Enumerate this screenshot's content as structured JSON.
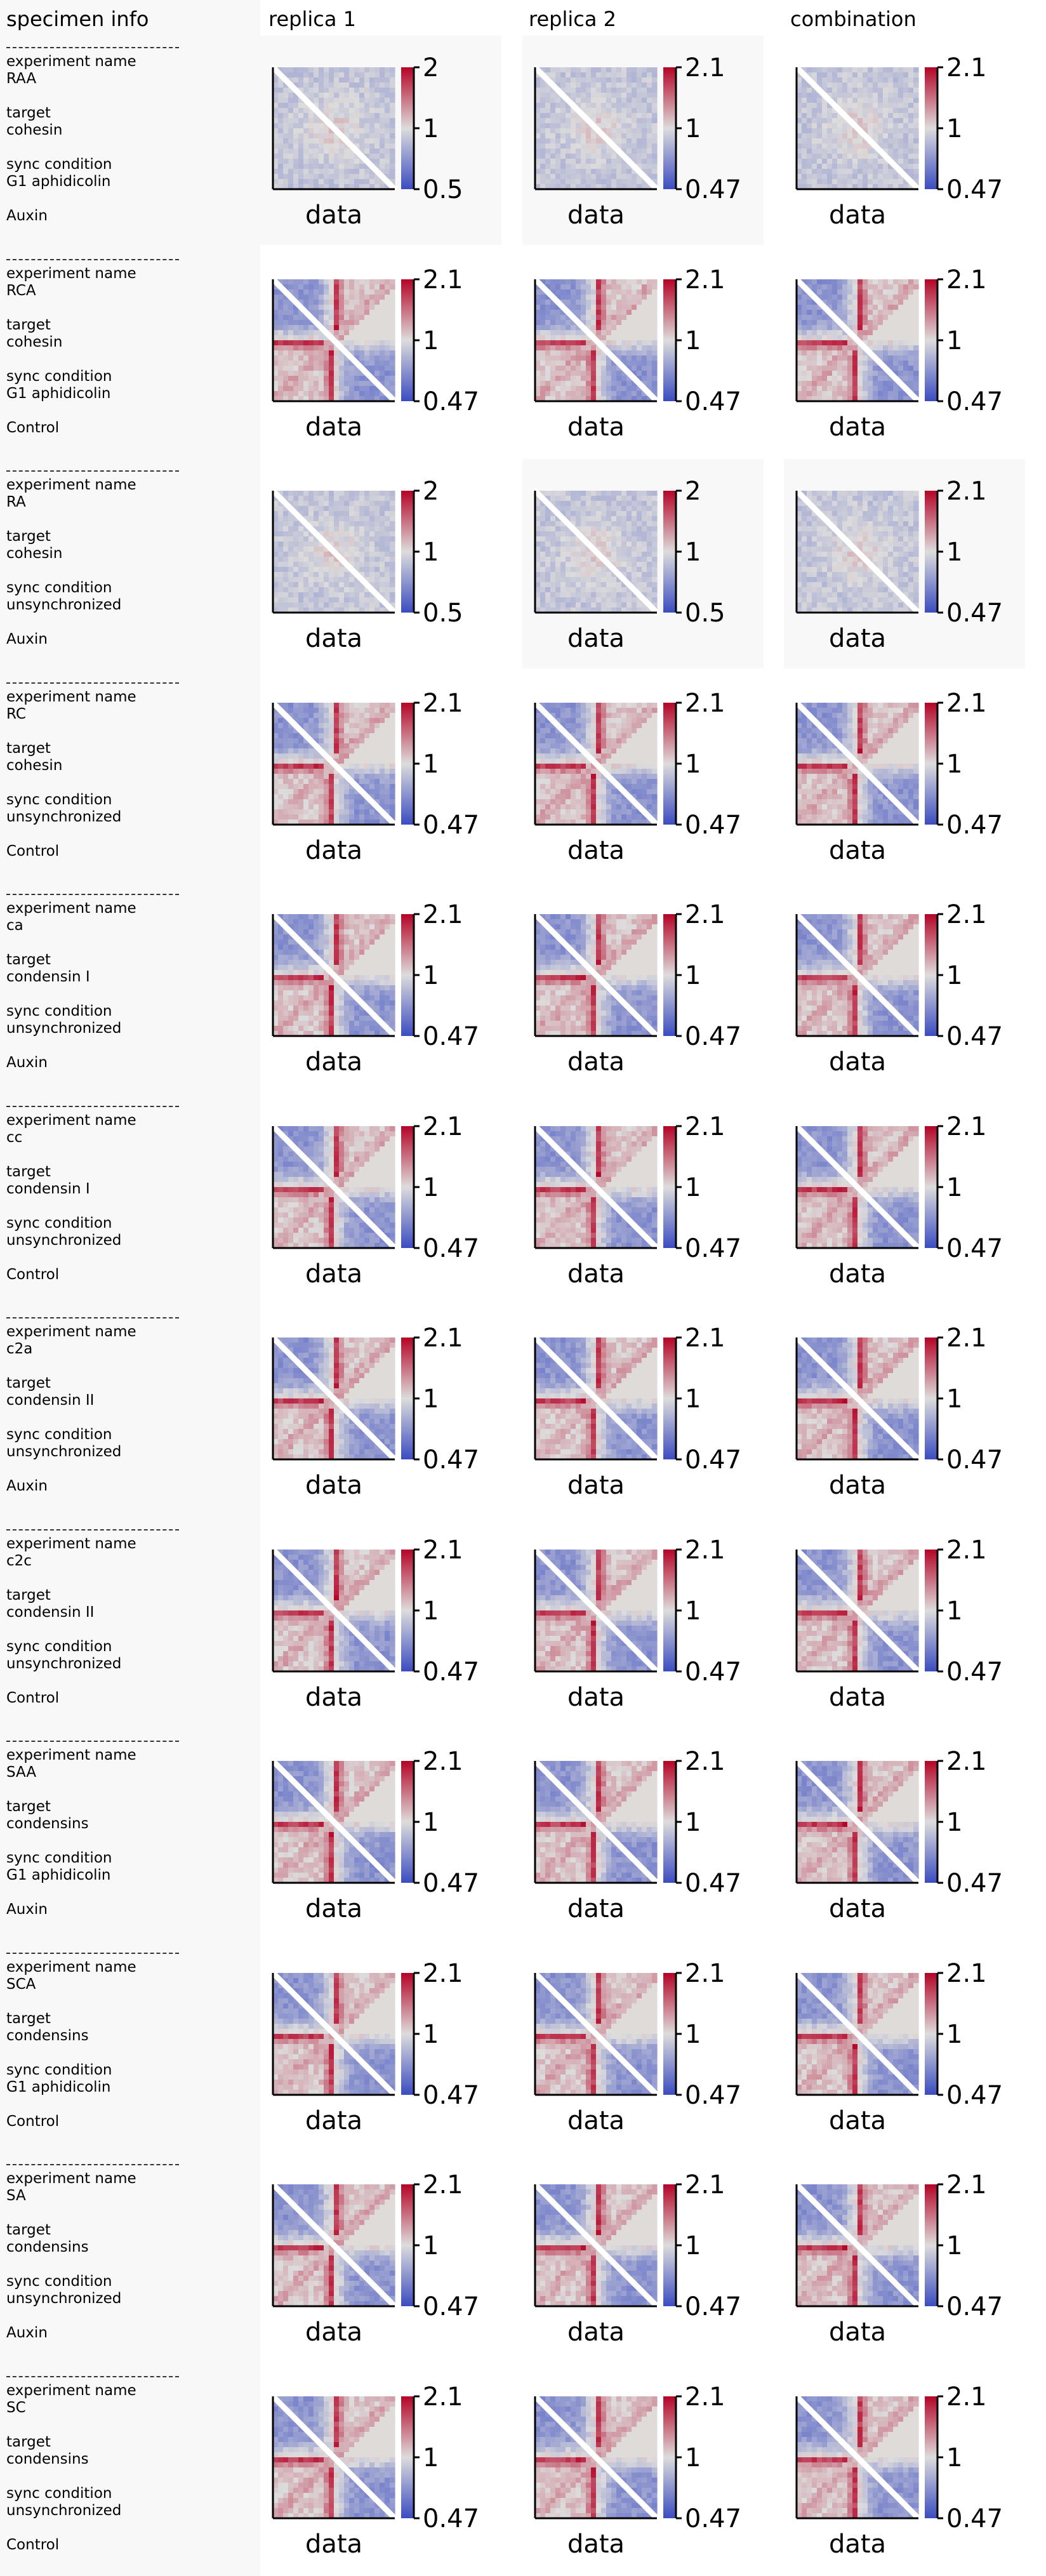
{
  "headers": {
    "info": "specimen info",
    "rep1": "replica 1",
    "rep2": "replica 2",
    "combo": "combination"
  },
  "labels": {
    "experiment_name": "experiment name",
    "target": "target",
    "sync_condition": "sync condition",
    "xlabel": "data"
  },
  "colors": {
    "low": "#3b4cc0",
    "mid": "#dddcdc",
    "high": "#b40426",
    "diagonal_mask": "#ffffff",
    "background": "#ffffff",
    "sidebar_background": "#f8f8f8"
  },
  "specimens": [
    {
      "name": "RAA",
      "target": "cohesin",
      "sync": "G1 aphidicolin",
      "treatment": "Auxin",
      "pattern": "weak",
      "ticks": [
        [
          "2",
          "1",
          "0.5"
        ],
        [
          "2.1",
          "1",
          "0.47"
        ],
        [
          "2.1",
          "1",
          "0.47"
        ]
      ],
      "shaded": [
        true,
        true,
        false
      ]
    },
    {
      "name": "RCA",
      "target": "cohesin",
      "sync": "G1 aphidicolin",
      "treatment": "Control",
      "pattern": "strong",
      "ticks": [
        [
          "2.1",
          "1",
          "0.47"
        ],
        [
          "2.1",
          "1",
          "0.47"
        ],
        [
          "2.1",
          "1",
          "0.47"
        ]
      ],
      "shaded": [
        false,
        false,
        false
      ]
    },
    {
      "name": "RA",
      "target": "cohesin",
      "sync": "unsynchronized",
      "treatment": "Auxin",
      "pattern": "weak",
      "ticks": [
        [
          "2",
          "1",
          "0.5"
        ],
        [
          "2",
          "1",
          "0.5"
        ],
        [
          "2.1",
          "1",
          "0.47"
        ]
      ],
      "shaded": [
        false,
        true,
        true
      ]
    },
    {
      "name": "RC",
      "target": "cohesin",
      "sync": "unsynchronized",
      "treatment": "Control",
      "pattern": "strong",
      "ticks": [
        [
          "2.1",
          "1",
          "0.47"
        ],
        [
          "2.1",
          "1",
          "0.47"
        ],
        [
          "2.1",
          "1",
          "0.47"
        ]
      ],
      "shaded": [
        false,
        false,
        false
      ]
    },
    {
      "name": "ca",
      "target": "condensin I",
      "sync": "unsynchronized",
      "treatment": "Auxin",
      "pattern": "strong",
      "ticks": [
        [
          "2.1",
          "1",
          "0.47"
        ],
        [
          "2.1",
          "1",
          "0.47"
        ],
        [
          "2.1",
          "1",
          "0.47"
        ]
      ],
      "shaded": [
        false,
        false,
        false
      ]
    },
    {
      "name": "cc",
      "target": "condensin I",
      "sync": "unsynchronized",
      "treatment": "Control",
      "pattern": "strong",
      "ticks": [
        [
          "2.1",
          "1",
          "0.47"
        ],
        [
          "2.1",
          "1",
          "0.47"
        ],
        [
          "2.1",
          "1",
          "0.47"
        ]
      ],
      "shaded": [
        false,
        false,
        false
      ]
    },
    {
      "name": "c2a",
      "target": "condensin II",
      "sync": "unsynchronized",
      "treatment": "Auxin",
      "pattern": "strong",
      "ticks": [
        [
          "2.1",
          "1",
          "0.47"
        ],
        [
          "2.1",
          "1",
          "0.47"
        ],
        [
          "2.1",
          "1",
          "0.47"
        ]
      ],
      "shaded": [
        false,
        false,
        false
      ]
    },
    {
      "name": "c2c",
      "target": "condensin II",
      "sync": "unsynchronized",
      "treatment": "Control",
      "pattern": "strong",
      "ticks": [
        [
          "2.1",
          "1",
          "0.47"
        ],
        [
          "2.1",
          "1",
          "0.47"
        ],
        [
          "2.1",
          "1",
          "0.47"
        ]
      ],
      "shaded": [
        false,
        false,
        false
      ]
    },
    {
      "name": "SAA",
      "target": "condensins",
      "sync": "G1 aphidicolin",
      "treatment": "Auxin",
      "pattern": "strong",
      "ticks": [
        [
          "2.1",
          "1",
          "0.47"
        ],
        [
          "2.1",
          "1",
          "0.47"
        ],
        [
          "2.1",
          "1",
          "0.47"
        ]
      ],
      "shaded": [
        false,
        false,
        false
      ]
    },
    {
      "name": "SCA",
      "target": "condensins",
      "sync": "G1 aphidicolin",
      "treatment": "Control",
      "pattern": "strong",
      "ticks": [
        [
          "2.1",
          "1",
          "0.47"
        ],
        [
          "2.1",
          "1",
          "0.47"
        ],
        [
          "2.1",
          "1",
          "0.47"
        ]
      ],
      "shaded": [
        false,
        false,
        false
      ]
    },
    {
      "name": "SA",
      "target": "condensins",
      "sync": "unsynchronized",
      "treatment": "Auxin",
      "pattern": "strong",
      "ticks": [
        [
          "2.1",
          "1",
          "0.47"
        ],
        [
          "2.1",
          "1",
          "0.47"
        ],
        [
          "2.1",
          "1",
          "0.47"
        ]
      ],
      "shaded": [
        false,
        false,
        false
      ]
    },
    {
      "name": "SC",
      "target": "condensins",
      "sync": "unsynchronized",
      "treatment": "Control",
      "pattern": "strong",
      "ticks": [
        [
          "2.1",
          "1",
          "0.47"
        ],
        [
          "2.1",
          "1",
          "0.47"
        ],
        [
          "2.1",
          "1",
          "0.47"
        ]
      ],
      "shaded": [
        false,
        false,
        false
      ]
    }
  ]
}
